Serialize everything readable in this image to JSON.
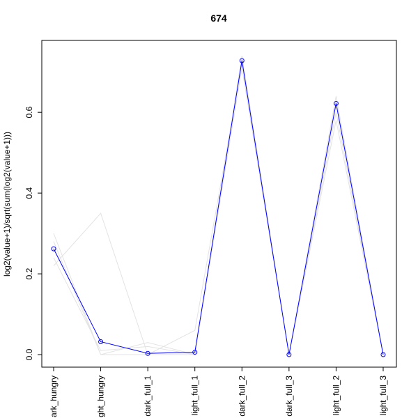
{
  "chart_data": {
    "type": "line",
    "title": "674",
    "y_label": "log2(value+1)/sqrt(sum(log2(value+1)))",
    "categories": [
      "ark_hungry",
      "ght_hungry",
      "dark_full_1",
      "light_full_1",
      "dark_full_2",
      "dark_full_3",
      "light_full_2",
      "light_full_3"
    ],
    "series": [
      {
        "color": "#e3e3e3",
        "values": [
          0.3,
          0.0,
          0.03,
          0.0,
          0.74,
          0.0,
          0.64,
          0.0
        ]
      },
      {
        "color": "#e3e3e3",
        "values": [
          0.22,
          0.35,
          0.0,
          0.06,
          0.72,
          0.0,
          0.6,
          0.0
        ]
      },
      {
        "color": "#e3e3e3",
        "values": [
          0.28,
          0.0,
          0.0,
          0.0,
          0.71,
          0.0,
          0.58,
          0.0
        ]
      },
      {
        "color": "#e3e3e3",
        "values": [
          0.24,
          0.01,
          0.02,
          0.0,
          0.73,
          0.0,
          0.63,
          0.0
        ]
      },
      {
        "color": "#0000ff",
        "markers": true,
        "values": [
          0.262,
          0.032,
          0.003,
          0.006,
          0.728,
          0.0,
          0.622,
          0.0
        ]
      }
    ],
    "ylim": [
      -0.031,
      0.778
    ],
    "yticks": [
      {
        "value": 0,
        "label": "0.0"
      },
      0.2,
      0.4,
      0.6
    ]
  }
}
